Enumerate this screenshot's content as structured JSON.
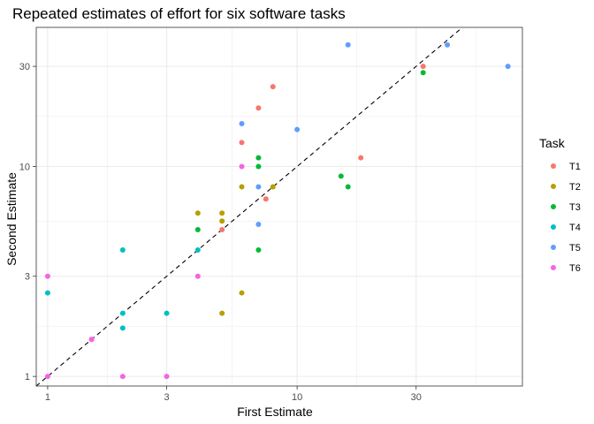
{
  "chart_data": {
    "type": "scatter",
    "title": "Repeated estimates of effort for six software tasks",
    "xlabel": "First Estimate",
    "ylabel": "Second Estimate",
    "x_scale": "log",
    "y_scale": "log",
    "xlim": [
      0.9,
      80
    ],
    "ylim": [
      0.9,
      46
    ],
    "x_ticks": [
      1,
      3,
      10,
      30
    ],
    "x_tick_labels": [
      "1",
      "3",
      "10",
      "30"
    ],
    "y_ticks": [
      1,
      3,
      10,
      30
    ],
    "y_tick_labels": [
      "1",
      "3",
      "10",
      "30"
    ],
    "grid": true,
    "legend_title": "Task",
    "legend_position": "right",
    "reference_line": {
      "type": "identity",
      "style": "dashed",
      "color": "#000000"
    },
    "series": [
      {
        "name": "T1",
        "color": "#F8766D",
        "points": [
          [
            5,
            5
          ],
          [
            6,
            13
          ],
          [
            7,
            19
          ],
          [
            8,
            24
          ],
          [
            7.5,
            7
          ],
          [
            18,
            11
          ],
          [
            32,
            30
          ],
          [
            1.5,
            1.5
          ]
        ]
      },
      {
        "name": "T2",
        "color": "#B79F00",
        "points": [
          [
            4,
            6
          ],
          [
            5,
            6
          ],
          [
            5,
            5.5
          ],
          [
            6,
            8
          ],
          [
            8,
            8
          ],
          [
            6,
            2.5
          ],
          [
            5,
            2
          ]
        ]
      },
      {
        "name": "T3",
        "color": "#00BA38",
        "points": [
          [
            4,
            5
          ],
          [
            7,
            11
          ],
          [
            7,
            10
          ],
          [
            15,
            9
          ],
          [
            16,
            8
          ],
          [
            7,
            4
          ],
          [
            32,
            28
          ]
        ]
      },
      {
        "name": "T4",
        "color": "#00BFC4",
        "points": [
          [
            1,
            2.5
          ],
          [
            2,
            4
          ],
          [
            2,
            2
          ],
          [
            2,
            1.7
          ],
          [
            3,
            2
          ],
          [
            4,
            4
          ]
        ]
      },
      {
        "name": "T5",
        "color": "#619CFF",
        "points": [
          [
            6,
            16
          ],
          [
            7,
            8
          ],
          [
            7,
            5.3
          ],
          [
            10,
            15
          ],
          [
            16,
            38
          ],
          [
            40,
            38
          ],
          [
            70,
            30
          ]
        ]
      },
      {
        "name": "T6",
        "color": "#F564E3",
        "points": [
          [
            1,
            3
          ],
          [
            1,
            1
          ],
          [
            2,
            1
          ],
          [
            3,
            1
          ],
          [
            4,
            3
          ],
          [
            6,
            10
          ],
          [
            1.5,
            1.5
          ]
        ]
      }
    ]
  }
}
